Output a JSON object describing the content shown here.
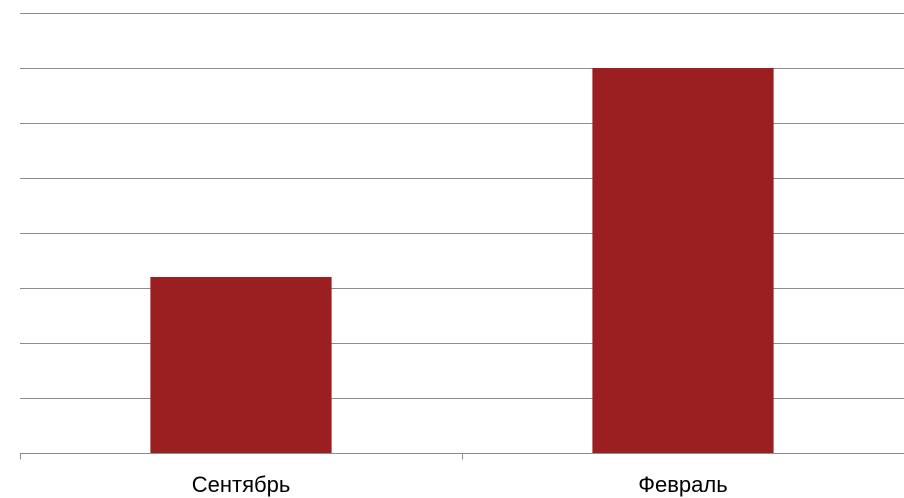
{
  "chart_data": {
    "type": "bar",
    "categories": [
      "Сентябрь",
      "Февраль"
    ],
    "values": [
      3.2,
      7
    ],
    "ylim": [
      0,
      8
    ],
    "grid": true,
    "bar_color": "#9B1F21",
    "grid_color": "#8C8C8C",
    "axis_color": "#8C8C8C"
  }
}
